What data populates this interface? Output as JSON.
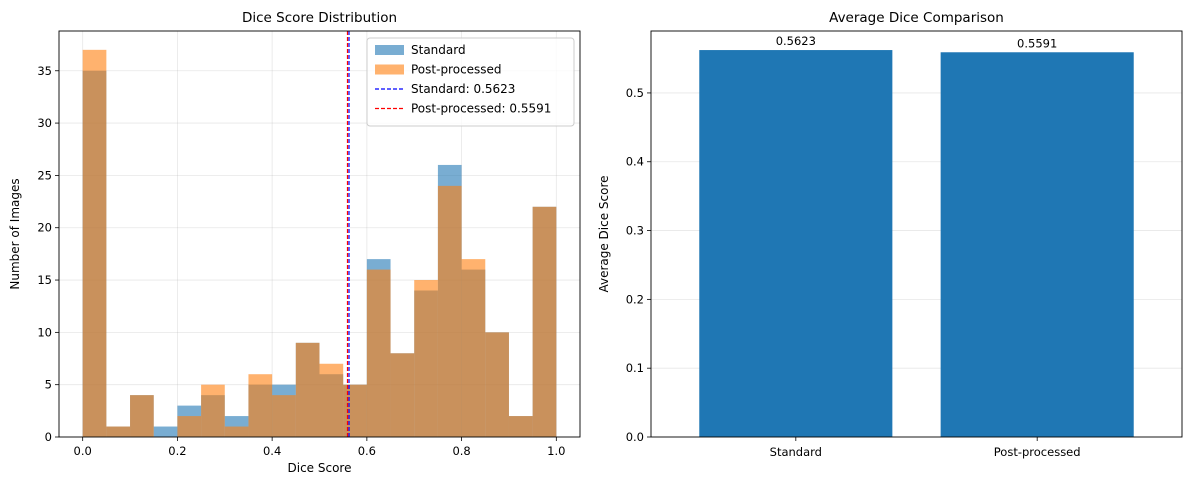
{
  "chart_data": [
    {
      "type": "bar",
      "subtype": "histogram-overlay",
      "title": "Dice Score Distribution",
      "xlabel": "Dice Score",
      "ylabel": "Number of Images",
      "xlim": [
        -0.05,
        1.05
      ],
      "ylim": [
        0,
        38.8
      ],
      "xticks": [
        0.0,
        0.2,
        0.4,
        0.6,
        0.8,
        1.0
      ],
      "xtick_labels": [
        "0.0",
        "0.2",
        "0.4",
        "0.6",
        "0.8",
        "1.0"
      ],
      "yticks": [
        0,
        5,
        10,
        15,
        20,
        25,
        30,
        35
      ],
      "ytick_labels": [
        "0",
        "5",
        "10",
        "15",
        "20",
        "25",
        "30",
        "35"
      ],
      "grid": true,
      "legend_position": "top-right",
      "bin_edges": [
        0.0,
        0.05,
        0.1,
        0.15,
        0.2,
        0.25,
        0.3,
        0.35,
        0.4,
        0.45,
        0.5,
        0.55,
        0.6,
        0.65,
        0.7,
        0.75,
        0.8,
        0.85,
        0.9,
        0.95,
        1.0
      ],
      "series": [
        {
          "name": "Standard",
          "color": "#1f77b4",
          "alpha": 0.6,
          "values": [
            35,
            1,
            4,
            1,
            3,
            4,
            2,
            5,
            5,
            9,
            6,
            5,
            17,
            8,
            14,
            26,
            16,
            10,
            2,
            22
          ]
        },
        {
          "name": "Post-processed",
          "color": "#ff7f0e",
          "alpha": 0.6,
          "values": [
            37,
            1,
            4,
            0,
            2,
            5,
            1,
            6,
            4,
            9,
            7,
            5,
            16,
            8,
            15,
            24,
            17,
            10,
            2,
            22
          ]
        }
      ],
      "vlines": [
        {
          "name": "Standard: 0.5623",
          "x": 0.5623,
          "color": "#0000ff",
          "style": "dashed"
        },
        {
          "name": "Post-processed: 0.5591",
          "x": 0.5591,
          "color": "#ff0000",
          "style": "dashed"
        }
      ]
    },
    {
      "type": "bar",
      "title": "Average Dice Comparison",
      "xlabel": "",
      "ylabel": "Average Dice Score",
      "categories": [
        "Standard",
        "Post-processed"
      ],
      "values": [
        0.5623,
        0.5591
      ],
      "data_labels": [
        "0.5623",
        "0.5591"
      ],
      "color": "#1f77b4",
      "ylim": [
        0,
        0.59
      ],
      "yticks": [
        0.0,
        0.1,
        0.2,
        0.3,
        0.4,
        0.5
      ],
      "ytick_labels": [
        "0.0",
        "0.1",
        "0.2",
        "0.3",
        "0.4",
        "0.5"
      ],
      "grid": true
    }
  ]
}
